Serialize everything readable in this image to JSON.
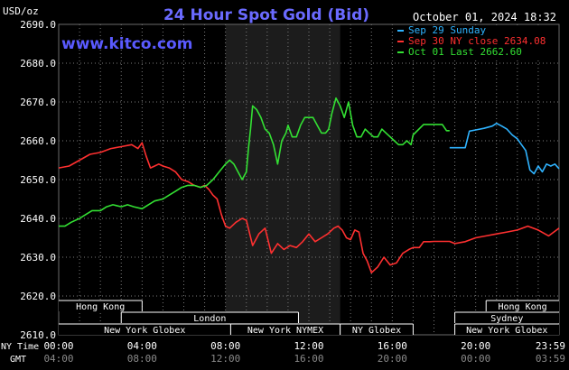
{
  "chart_data": {
    "type": "line",
    "title": "24 Hour Spot Gold (Bid)",
    "ylabel": "USD/oz",
    "timestamp": "October 01, 2024 18:32",
    "watermark": "www.kitco.com",
    "ylim": [
      2610,
      2690
    ],
    "xlim": [
      0,
      24
    ],
    "yticks": [
      "2690.0",
      "2680.0",
      "2670.0",
      "2660.0",
      "2650.0",
      "2640.0",
      "2630.0",
      "2620.0",
      "2610.0"
    ],
    "yticks_values": [
      2690,
      2680,
      2670,
      2660,
      2650,
      2640,
      2630,
      2620,
      2610
    ],
    "xticks_values": [
      0,
      4,
      8,
      12,
      16,
      20,
      24
    ],
    "xticks_ny": [
      "00:00",
      "04:00",
      "08:00",
      "12:00",
      "16:00",
      "20:00",
      "23:59"
    ],
    "xticks_gmt": [
      "04:00",
      "08:00",
      "12:00",
      "16:00",
      "20:00",
      "00:00",
      "03:59"
    ],
    "row_label_ny": "NY Time",
    "row_label_gmt": "GMT",
    "grid": true,
    "legend_position": "top-right",
    "highlight_x": [
      8,
      13.5
    ],
    "series": [
      {
        "name": "Sep 29 Sunday",
        "color": "#2fb3ff",
        "x": [
          18.75,
          19.5,
          19.7,
          20,
          20.4,
          20.8,
          21,
          21.25,
          21.5,
          21.75,
          22,
          22.2,
          22.4,
          22.6,
          22.8,
          23,
          23.2,
          23.4,
          23.6,
          23.8,
          24
        ],
        "y": [
          2658.2,
          2658.2,
          2662.5,
          2662.8,
          2663.2,
          2663.8,
          2664.5,
          2663.8,
          2663,
          2661.5,
          2660.5,
          2659,
          2657.5,
          2652.5,
          2651.5,
          2653.5,
          2652,
          2654,
          2653.5,
          2654,
          2652.8
        ]
      },
      {
        "name": "Sep 30 NY close 2634.08",
        "color": "#ff3030",
        "x": [
          0,
          0.5,
          1,
          1.5,
          2,
          2.5,
          3,
          3.5,
          3.8,
          4,
          4.2,
          4.4,
          4.6,
          4.8,
          5,
          5.3,
          5.6,
          5.9,
          6.2,
          6.5,
          6.8,
          7,
          7.2,
          7.4,
          7.6,
          7.8,
          8,
          8.2,
          8.5,
          8.8,
          9,
          9.3,
          9.6,
          9.9,
          10.2,
          10.5,
          10.8,
          11.1,
          11.4,
          11.7,
          12,
          12.3,
          12.6,
          12.9,
          13.2,
          13.4,
          13.6,
          13.8,
          14,
          14.2,
          14.4,
          14.6,
          14.8,
          15,
          15.3,
          15.6,
          15.9,
          16.2,
          16.5,
          16.8,
          17,
          17.3,
          17.5,
          17.8,
          18,
          18.3,
          18.6,
          18.75,
          19,
          19.5,
          20,
          20.5,
          21,
          21.5,
          22,
          22.5,
          23,
          23.5,
          24
        ],
        "y": [
          2653,
          2653.5,
          2655,
          2656.5,
          2657,
          2658,
          2658.5,
          2659,
          2658,
          2659.5,
          2656,
          2653,
          2653.5,
          2654,
          2653.5,
          2653,
          2652,
          2650,
          2649.5,
          2648.5,
          2648,
          2648.5,
          2647.5,
          2646,
          2645,
          2641,
          2638,
          2637.5,
          2639,
          2640,
          2639.5,
          2633,
          2636,
          2637.5,
          2631,
          2633.5,
          2632,
          2633,
          2632.5,
          2634,
          2636,
          2634,
          2635,
          2636,
          2637.5,
          2638,
          2637,
          2635,
          2634.5,
          2637,
          2636.5,
          2631,
          2629,
          2626,
          2627.5,
          2630,
          2628,
          2628.5,
          2631,
          2632,
          2632.5,
          2632.5,
          2634,
          2634,
          2634.08,
          2634.08,
          2634.08,
          2634.08,
          2633.5,
          2634,
          2635,
          2635.5,
          2636,
          2636.5,
          2637,
          2638,
          2637,
          2635.5,
          2637.5
        ]
      },
      {
        "name": "Oct 01 Last 2662.60",
        "color": "#33e033",
        "x": [
          0,
          0.3,
          0.6,
          1,
          1.3,
          1.6,
          2,
          2.3,
          2.6,
          3,
          3.3,
          3.6,
          4,
          4.3,
          4.6,
          5,
          5.3,
          5.6,
          5.9,
          6.2,
          6.5,
          6.8,
          7.1,
          7.4,
          7.7,
          8,
          8.2,
          8.4,
          8.6,
          8.8,
          9,
          9.1,
          9.2,
          9.3,
          9.5,
          9.7,
          9.9,
          10.1,
          10.3,
          10.5,
          10.7,
          10.9,
          11,
          11.2,
          11.4,
          11.6,
          11.8,
          12,
          12.2,
          12.4,
          12.6,
          12.8,
          12.95,
          13.1,
          13.3,
          13.5,
          13.7,
          13.9,
          14.1,
          14.3,
          14.5,
          14.7,
          14.9,
          15.1,
          15.3,
          15.5,
          15.7,
          15.9,
          16.1,
          16.3,
          16.5,
          16.7,
          16.9,
          17,
          17.5,
          18,
          18.4,
          18.6,
          18.75
        ],
        "y": [
          2638,
          2638,
          2639,
          2640,
          2641,
          2642,
          2642,
          2643,
          2643.5,
          2643,
          2643.5,
          2643,
          2642.5,
          2643.5,
          2644.5,
          2645,
          2646,
          2647,
          2648,
          2648.5,
          2648.5,
          2648,
          2648.5,
          2650,
          2652,
          2654,
          2655,
          2654,
          2652,
          2650,
          2652,
          2658,
          2663,
          2669,
          2668,
          2666,
          2663,
          2662,
          2659,
          2654,
          2660,
          2662,
          2664,
          2661,
          2661,
          2664,
          2666,
          2666,
          2666,
          2664,
          2662,
          2662,
          2663,
          2667,
          2671,
          2669,
          2666,
          2670,
          2664,
          2661,
          2661,
          2663,
          2662,
          2661,
          2661,
          2663,
          2662,
          2661,
          2660,
          2659,
          2659,
          2660,
          2659,
          2661.5,
          2664.2,
          2664.2,
          2664.2,
          2662.6,
          2662.6
        ]
      }
    ],
    "session_bars": [
      {
        "label": "Hong Kong",
        "row": 0,
        "start": 0,
        "end": 4,
        "open_left": true
      },
      {
        "label": "Hong Kong",
        "row": 0,
        "start": 20.5,
        "end": 24,
        "open_right": true
      },
      {
        "label": "London",
        "row": 1,
        "start": 3,
        "end": 11.5
      },
      {
        "label": "Sydney",
        "row": 1,
        "start": 19,
        "end": 24,
        "open_right": true
      },
      {
        "label": "New York Globex",
        "row": 2,
        "start": 0,
        "end": 8.25,
        "open_left": true
      },
      {
        "label": "New York NYMEX",
        "row": 2,
        "start": 8.25,
        "end": 13.5
      },
      {
        "label": "NY Globex",
        "row": 2,
        "start": 13.5,
        "end": 17
      },
      {
        "label": "New York Globex",
        "row": 2,
        "start": 19,
        "end": 24,
        "open_right": true
      }
    ]
  }
}
